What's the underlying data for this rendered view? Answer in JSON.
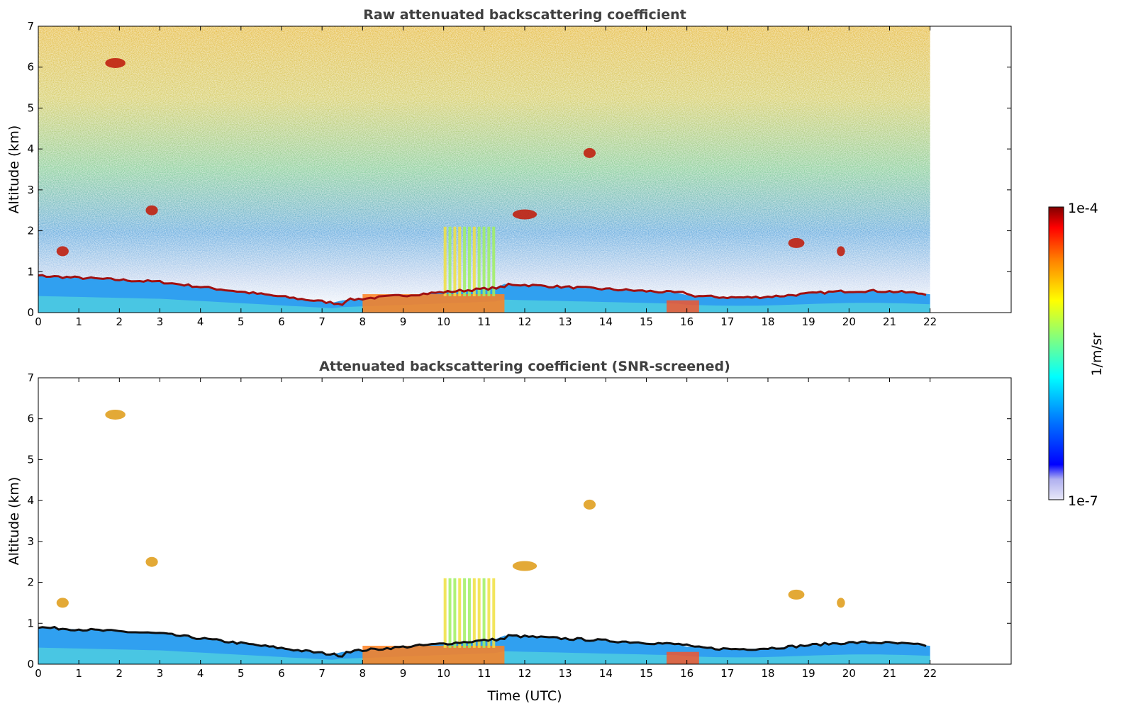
{
  "chart_data": [
    {
      "type": "heatmap",
      "title": "Raw attenuated backscattering coefficient",
      "xlabel": "",
      "ylabel": "Altitude (km)",
      "xlim": [
        0,
        24
      ],
      "ylim": [
        0,
        7
      ],
      "xticks": [
        "0",
        "1",
        "2",
        "3",
        "4",
        "5",
        "6",
        "7",
        "8",
        "9",
        "10",
        "11",
        "12",
        "13",
        "14",
        "15",
        "16",
        "17",
        "18",
        "19",
        "20",
        "21",
        "22"
      ],
      "yticks": [
        "0",
        "1",
        "2",
        "3",
        "4",
        "5",
        "6",
        "7"
      ],
      "data_end_hour": 22,
      "grid": false
    },
    {
      "type": "heatmap",
      "title": "Attenuated backscattering coefficient (SNR-screened)",
      "xlabel": "Time (UTC)",
      "ylabel": "Altitude (km)",
      "xlim": [
        0,
        24
      ],
      "ylim": [
        0,
        7
      ],
      "xticks": [
        "0",
        "1",
        "2",
        "3",
        "4",
        "5",
        "6",
        "7",
        "8",
        "9",
        "10",
        "11",
        "12",
        "13",
        "14",
        "15",
        "16",
        "17",
        "18",
        "19",
        "20",
        "21",
        "22"
      ],
      "yticks": [
        "0",
        "1",
        "2",
        "3",
        "4",
        "5",
        "6",
        "7"
      ],
      "data_end_hour": 22,
      "grid": false
    }
  ],
  "colorbar": {
    "label": "1/m/sr",
    "max_label": "1e-4",
    "min_label": "1e-7",
    "scale": "log",
    "colormap": [
      "#e8e8f8",
      "#b0b0f0",
      "#0000ff",
      "#0080ff",
      "#00ffff",
      "#80ff80",
      "#ffff00",
      "#ff8000",
      "#ff0000",
      "#800000"
    ]
  }
}
